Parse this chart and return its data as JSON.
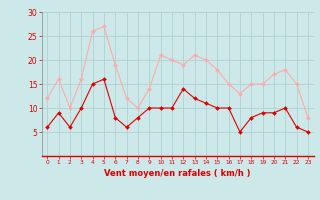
{
  "x": [
    0,
    1,
    2,
    3,
    4,
    5,
    6,
    7,
    8,
    9,
    10,
    11,
    12,
    13,
    14,
    15,
    16,
    17,
    18,
    19,
    20,
    21,
    22,
    23
  ],
  "wind_avg": [
    6,
    9,
    6,
    10,
    15,
    16,
    8,
    6,
    8,
    10,
    10,
    10,
    14,
    12,
    11,
    10,
    10,
    5,
    8,
    9,
    9,
    10,
    6,
    5
  ],
  "wind_gust": [
    12,
    16,
    10,
    16,
    26,
    27,
    19,
    12,
    10,
    14,
    21,
    20,
    19,
    21,
    20,
    18,
    15,
    13,
    15,
    15,
    17,
    18,
    15,
    8
  ],
  "avg_color": "#dd0000",
  "gust_color": "#ffaaaa",
  "bg_color": "#cce8e8",
  "grid_color": "#aacece",
  "xlabel": "Vent moyen/en rafales ( km/h )",
  "xlabel_color": "#dd0000",
  "tick_color": "#dd0000",
  "ylim": [
    0,
    30
  ],
  "yticks": [
    5,
    10,
    15,
    20,
    25,
    30
  ],
  "xticks": [
    0,
    1,
    2,
    3,
    4,
    5,
    6,
    7,
    8,
    9,
    10,
    11,
    12,
    13,
    14,
    15,
    16,
    17,
    18,
    19,
    20,
    21,
    22,
    23
  ]
}
